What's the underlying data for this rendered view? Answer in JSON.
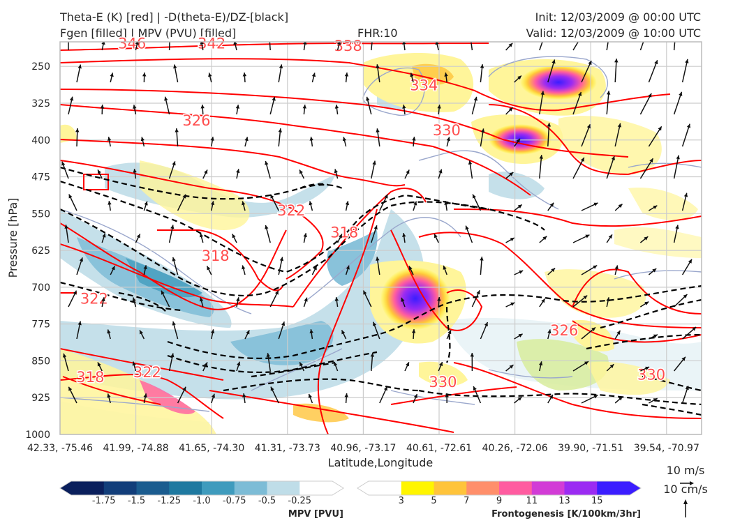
{
  "header": {
    "title_line1": "Theta-E (K) [red] | -D(theta-E)/DZ-[black]",
    "title_line2": "Fgen [filled] | MPV (PVU) [filled]",
    "fhr": "FHR:10",
    "init": "Init: 12/03/2009 @ 00:00 UTC",
    "valid": "Valid: 12/03/2009 @ 10:00 UTC"
  },
  "chart_data": {
    "type": "cross-section",
    "xlabel": "Latitude,Longitude",
    "ylabel": "Pressure [hPa]",
    "x_ticks": [
      "42.33, -75.46",
      "41.99, -74.88",
      "41.65, -74.30",
      "41.31, -73.73",
      "40.96, -73.17",
      "40.61, -72.61",
      "40.26, -72.06",
      "39.90, -71.51",
      "39.54, -70.97"
    ],
    "y_ticks": [
      250,
      325,
      400,
      475,
      550,
      625,
      700,
      775,
      850,
      925,
      1000
    ],
    "ylim": [
      1000,
      200
    ],
    "y_scale": "linear",
    "grid": true,
    "theta_e_labels": [
      {
        "text": "346",
        "x": 0.95,
        "p": 205
      },
      {
        "text": "342",
        "x": 2.0,
        "p": 205
      },
      {
        "text": "338",
        "x": 3.8,
        "p": 210
      },
      {
        "text": "334",
        "x": 4.8,
        "p": 290
      },
      {
        "text": "330",
        "x": 5.1,
        "p": 382
      },
      {
        "text": "326",
        "x": 1.8,
        "p": 362
      },
      {
        "text": "322",
        "x": 3.05,
        "p": 545
      },
      {
        "text": "318",
        "x": 3.75,
        "p": 590
      },
      {
        "text": "318",
        "x": 2.05,
        "p": 638
      },
      {
        "text": "322",
        "x": 0.45,
        "p": 725
      },
      {
        "text": "318",
        "x": 0.4,
        "p": 885
      },
      {
        "text": "322",
        "x": 1.15,
        "p": 875
      },
      {
        "text": "330",
        "x": 5.05,
        "p": 895
      },
      {
        "text": "326",
        "x": 6.65,
        "p": 790
      },
      {
        "text": "330",
        "x": 7.8,
        "p": 880
      }
    ],
    "colorbars": [
      {
        "name": "MPV [PVU]",
        "ticks": [
          "-1.75",
          "-1.5",
          "-1.25",
          "-1.0",
          "-0.75",
          "-0.5",
          "-0.25"
        ],
        "colors": [
          "#0a1f5c",
          "#123e7a",
          "#1b5c8f",
          "#1f79a0",
          "#3f9bbd",
          "#7dbcd6",
          "#bfdde8",
          "#ffffff"
        ]
      },
      {
        "name": "Frontogenesis [K/100km/3hr]",
        "ticks": [
          "3",
          "5",
          "7",
          "9",
          "11",
          "13",
          "15"
        ],
        "colors": [
          "#ffffff",
          "#fff500",
          "#ffc43b",
          "#ff8f6b",
          "#ff5ca0",
          "#d23cd6",
          "#9b2bf2",
          "#3b1dff"
        ]
      }
    ],
    "wind_reference": {
      "label1": "10 m/s",
      "label2": "10 cm/s"
    },
    "colors": {
      "theta_e": "#ff0000",
      "dthetadz": "#000000",
      "grid": "#cccccc",
      "mpv_contour": "#9aa7cc"
    }
  }
}
